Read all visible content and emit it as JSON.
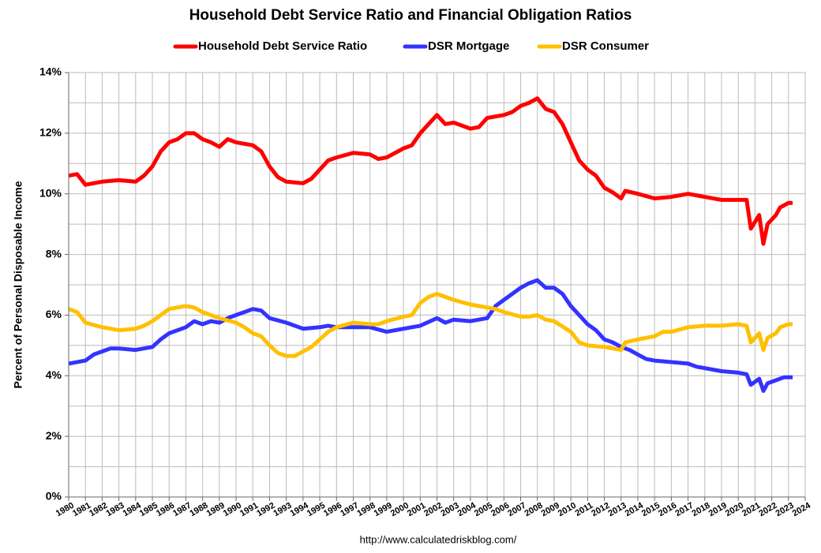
{
  "chart_data": {
    "type": "line",
    "title": "Household Debt Service Ratio and Financial Obligation Ratios",
    "y_label": "Percent of Personal Disposable Income",
    "source": "http://www.calculatedriskblog.com/",
    "xlim": [
      1980,
      2024
    ],
    "xticks": [
      1980,
      1981,
      1982,
      1983,
      1984,
      1985,
      1986,
      1987,
      1988,
      1989,
      1990,
      1991,
      1992,
      1993,
      1994,
      1995,
      1996,
      1997,
      1998,
      1999,
      2000,
      2001,
      2002,
      2003,
      2004,
      2005,
      2006,
      2007,
      2008,
      2009,
      2010,
      2011,
      2012,
      2013,
      2014,
      2015,
      2016,
      2017,
      2018,
      2019,
      2020,
      2021,
      2022,
      2023,
      2024
    ],
    "ylim": [
      0,
      14
    ],
    "yticks": [
      {
        "value": 0,
        "label": "0%"
      },
      {
        "value": 2,
        "label": "2%"
      },
      {
        "value": 4,
        "label": "4%"
      },
      {
        "value": 6,
        "label": "6%"
      },
      {
        "value": 8,
        "label": "8%"
      },
      {
        "value": 10,
        "label": "10%"
      },
      {
        "value": 12,
        "label": "12%"
      },
      {
        "value": 14,
        "label": "14%"
      }
    ],
    "y_minor_grid": [
      1,
      3,
      5,
      7,
      9,
      11,
      13
    ],
    "grid": true,
    "legend": "top",
    "series": [
      {
        "name": "Household Debt Service Ratio",
        "color": "#ff0000",
        "x": [
          1980,
          1980.5,
          1981,
          1982,
          1983,
          1984,
          1984.5,
          1985,
          1985.5,
          1986,
          1986.5,
          1987,
          1987.5,
          1988,
          1988.5,
          1989,
          1989.5,
          1990,
          1991,
          1991.5,
          1992,
          1992.5,
          1993,
          1994,
          1994.5,
          1995,
          1995.5,
          1996,
          1997,
          1998,
          1998.5,
          1999,
          2000,
          2000.5,
          2001,
          2001.5,
          2002,
          2002.5,
          2003,
          2004,
          2004.5,
          2005,
          2006,
          2006.5,
          2007,
          2007.5,
          2008,
          2008.5,
          2009,
          2009.5,
          2010,
          2010.5,
          2011,
          2011.5,
          2012,
          2012.5,
          2013,
          2013.25,
          2014,
          2015,
          2016,
          2017,
          2018,
          2019,
          2020,
          2020.5,
          2020.75,
          2021.25,
          2021.5,
          2021.75,
          2022.25,
          2022.5,
          2023,
          2023.25
        ],
        "values": [
          10.6,
          10.65,
          10.3,
          10.4,
          10.45,
          10.4,
          10.6,
          10.9,
          11.4,
          11.7,
          11.8,
          12.0,
          12.0,
          11.8,
          11.7,
          11.55,
          11.8,
          11.7,
          11.6,
          11.4,
          10.9,
          10.55,
          10.4,
          10.35,
          10.5,
          10.8,
          11.1,
          11.2,
          11.35,
          11.3,
          11.15,
          11.2,
          11.5,
          11.6,
          12.0,
          12.3,
          12.6,
          12.3,
          12.35,
          12.15,
          12.2,
          12.5,
          12.6,
          12.7,
          12.9,
          13.0,
          13.15,
          12.8,
          12.7,
          12.3,
          11.7,
          11.1,
          10.8,
          10.6,
          10.2,
          10.05,
          9.85,
          10.1,
          10.0,
          9.85,
          9.9,
          10.0,
          9.9,
          9.8,
          9.8,
          9.8,
          8.85,
          9.3,
          8.35,
          9.0,
          9.3,
          9.55,
          9.7,
          9.7
        ]
      },
      {
        "name": "DSR Mortgage",
        "color": "#3333ff",
        "x": [
          1980,
          1981,
          1981.5,
          1982,
          1982.5,
          1983,
          1984,
          1985,
          1985.5,
          1986,
          1987,
          1987.5,
          1988,
          1988.5,
          1989,
          1989.5,
          1990,
          1990.5,
          1991,
          1991.5,
          1992,
          1993,
          1994,
          1995,
          1995.5,
          1996,
          1997,
          1998,
          1999,
          2000,
          2001,
          2002,
          2002.5,
          2003,
          2004,
          2005,
          2005.5,
          2006,
          2007,
          2007.5,
          2008,
          2008.5,
          2009,
          2009.5,
          2010,
          2010.5,
          2011,
          2011.5,
          2012,
          2012.5,
          2013,
          2013.5,
          2014,
          2014.5,
          2015,
          2016,
          2017,
          2017.5,
          2018,
          2019,
          2020,
          2020.5,
          2020.75,
          2021.25,
          2021.5,
          2021.75,
          2022.25,
          2022.75,
          2023.25
        ],
        "values": [
          4.4,
          4.5,
          4.7,
          4.8,
          4.9,
          4.9,
          4.85,
          4.95,
          5.2,
          5.4,
          5.6,
          5.8,
          5.7,
          5.8,
          5.75,
          5.9,
          6.0,
          6.1,
          6.2,
          6.15,
          5.9,
          5.75,
          5.55,
          5.6,
          5.65,
          5.6,
          5.6,
          5.6,
          5.45,
          5.55,
          5.65,
          5.9,
          5.75,
          5.85,
          5.8,
          5.9,
          6.3,
          6.5,
          6.9,
          7.05,
          7.15,
          6.9,
          6.9,
          6.7,
          6.3,
          6.0,
          5.7,
          5.5,
          5.2,
          5.1,
          4.95,
          4.85,
          4.7,
          4.55,
          4.5,
          4.45,
          4.4,
          4.3,
          4.25,
          4.15,
          4.1,
          4.05,
          3.7,
          3.9,
          3.5,
          3.75,
          3.85,
          3.95,
          3.95
        ]
      },
      {
        "name": "DSR Consumer",
        "color": "#ffc000",
        "x": [
          1980,
          1980.5,
          1981,
          1982,
          1983,
          1984,
          1984.5,
          1985,
          1985.5,
          1986,
          1987,
          1987.5,
          1988,
          1989,
          1990,
          1990.5,
          1991,
          1991.5,
          1992,
          1992.5,
          1993,
          1993.5,
          1994,
          1994.5,
          1995,
          1995.5,
          1996,
          1997,
          1998,
          1998.5,
          1999,
          2000,
          2000.5,
          2001,
          2001.5,
          2002,
          2002.5,
          2003,
          2004,
          2005,
          2005.5,
          2006,
          2007,
          2007.5,
          2008,
          2008.5,
          2009,
          2010,
          2010.5,
          2011,
          2012,
          2012.5,
          2013,
          2013.25,
          2014,
          2015,
          2015.5,
          2016,
          2017,
          2018,
          2019,
          2020,
          2020.5,
          2020.75,
          2021.25,
          2021.5,
          2021.75,
          2022.25,
          2022.5,
          2023,
          2023.25
        ],
        "values": [
          6.2,
          6.1,
          5.75,
          5.6,
          5.5,
          5.55,
          5.65,
          5.8,
          6.0,
          6.2,
          6.3,
          6.25,
          6.1,
          5.9,
          5.75,
          5.6,
          5.4,
          5.3,
          5.0,
          4.75,
          4.65,
          4.65,
          4.8,
          4.95,
          5.2,
          5.45,
          5.6,
          5.75,
          5.7,
          5.7,
          5.8,
          5.95,
          6.0,
          6.4,
          6.6,
          6.7,
          6.6,
          6.5,
          6.35,
          6.25,
          6.2,
          6.1,
          5.95,
          5.95,
          6.0,
          5.85,
          5.8,
          5.45,
          5.1,
          5.0,
          4.95,
          4.9,
          4.85,
          5.1,
          5.2,
          5.3,
          5.45,
          5.45,
          5.6,
          5.65,
          5.65,
          5.7,
          5.65,
          5.1,
          5.4,
          4.85,
          5.25,
          5.4,
          5.6,
          5.7,
          5.7
        ]
      }
    ]
  }
}
